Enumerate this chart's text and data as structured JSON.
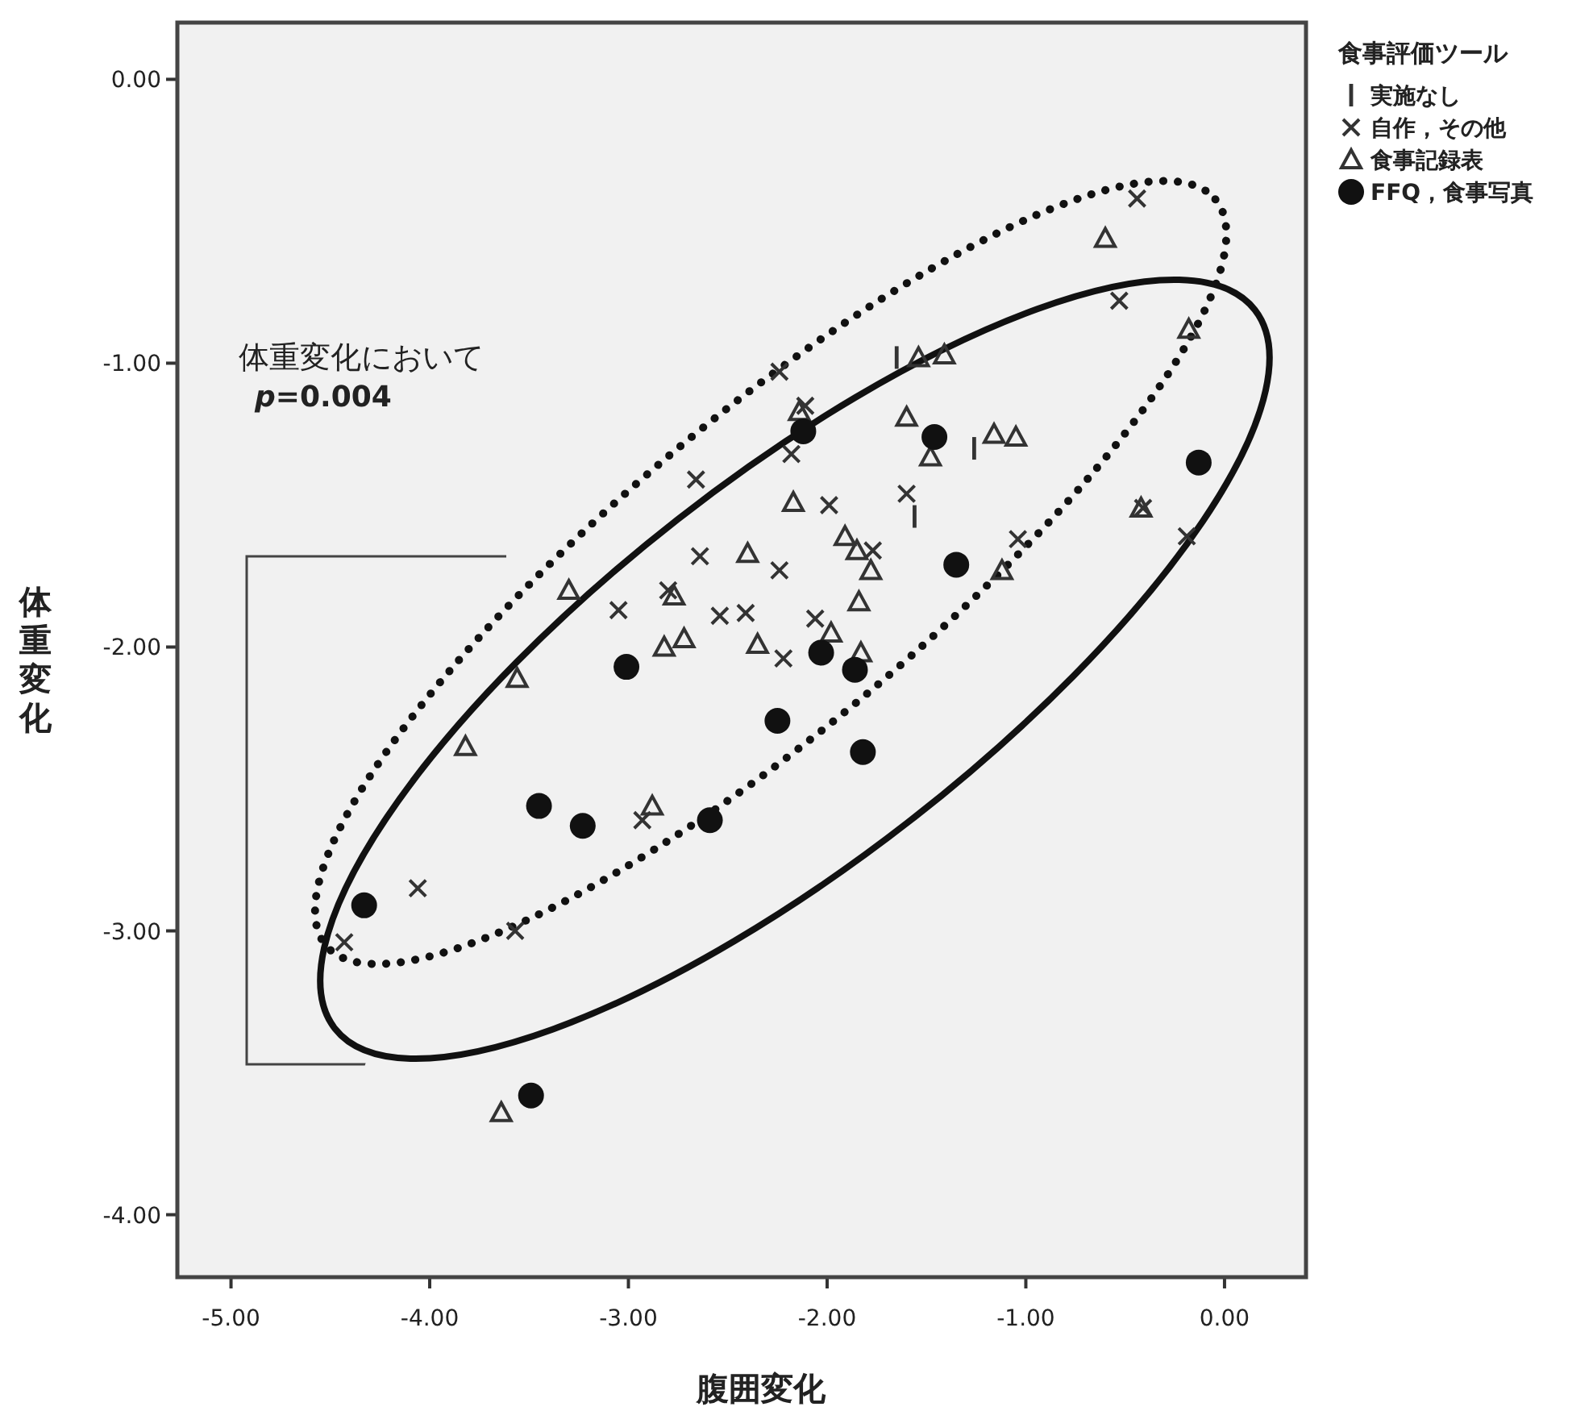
{
  "chart_data": {
    "type": "scatter",
    "xlabel": "腹囲変化",
    "ylabel": "体重変化",
    "legend_title": "食事評価ツール",
    "legend": "top right",
    "xlim": [
      -5.27,
      0.41
    ],
    "ylim": [
      -4.22,
      0.2
    ],
    "xticks": [
      {
        "value": -5,
        "label": "-5.00"
      },
      {
        "value": -4,
        "label": "-4.00"
      },
      {
        "value": -3,
        "label": "-3.00"
      },
      {
        "value": -2,
        "label": "-2.00"
      },
      {
        "value": -1,
        "label": "-1.00"
      },
      {
        "value": 0,
        "label": "0.00"
      }
    ],
    "yticks": [
      {
        "value": 0,
        "label": "0.00"
      },
      {
        "value": -1,
        "label": "-1.00"
      },
      {
        "value": -2,
        "label": "-2.00"
      },
      {
        "value": -3,
        "label": "-3.00"
      },
      {
        "value": -4,
        "label": "-4.00"
      }
    ],
    "annotations": [
      "体重変化において",
      "*p*=0.004"
    ],
    "series": [
      {
        "name": "実施なし",
        "color": "#333333",
        "x": [
          -1.65,
          -1.26,
          -1.56
        ],
        "values": [
          -0.98,
          -1.3,
          -1.54
        ]
      },
      {
        "name": "自作，その他",
        "color": "#333333",
        "marker": "cross",
        "x": [
          -0.44,
          -0.53,
          -2.24,
          -2.11,
          -2.18,
          -1.6,
          -1.99,
          -2.66,
          -2.64,
          -3.05,
          -2.8,
          -2.54,
          -2.41,
          -2.24,
          -2.06,
          -2.22,
          -1.77,
          -1.04,
          -0.19,
          -0.41,
          -2.93,
          -4.06,
          -3.57,
          -4.43
        ],
        "values": [
          -0.42,
          -0.78,
          -1.03,
          -1.15,
          -1.32,
          -1.46,
          -1.5,
          -1.41,
          -1.68,
          -1.87,
          -1.8,
          -1.89,
          -1.88,
          -1.73,
          -1.9,
          -2.04,
          -1.66,
          -1.62,
          -1.61,
          -1.51,
          -2.61,
          -2.85,
          -3.0,
          -3.04
        ]
      },
      {
        "name": "食事記録表",
        "color": "#333333",
        "marker": "triangle",
        "x": [
          -0.6,
          -0.18,
          -1.54,
          -1.41,
          -1.6,
          -1.48,
          -1.16,
          -1.05,
          -0.42,
          -1.12,
          -2.17,
          -2.4,
          -1.91,
          -1.85,
          -1.78,
          -1.84,
          -1.83,
          -3.3,
          -2.77,
          -2.72,
          -2.82,
          -2.35,
          -1.98,
          -3.56,
          -3.82,
          -2.88,
          -2.14,
          -3.64
        ],
        "values": [
          -0.56,
          -0.88,
          -0.98,
          -0.97,
          -1.19,
          -1.33,
          -1.25,
          -1.26,
          -1.51,
          -1.73,
          -1.49,
          -1.67,
          -1.61,
          -1.66,
          -1.73,
          -1.84,
          -2.02,
          -1.8,
          -1.82,
          -1.97,
          -2.0,
          -1.99,
          -1.95,
          -2.11,
          -2.35,
          -2.56,
          -1.17,
          -3.64
        ]
      },
      {
        "name": "FFQ，食事写真",
        "color": "#111111",
        "marker": "circle",
        "x": [
          -2.12,
          -1.46,
          -0.13,
          -1.35,
          -3.01,
          -2.03,
          -1.86,
          -2.25,
          -1.82,
          -3.45,
          -3.23,
          -2.59,
          -4.33,
          -3.49
        ],
        "values": [
          -1.24,
          -1.26,
          -1.35,
          -1.71,
          -2.07,
          -2.02,
          -2.08,
          -2.26,
          -2.37,
          -2.56,
          -2.63,
          -2.61,
          -2.91,
          -3.58
        ]
      }
    ]
  }
}
